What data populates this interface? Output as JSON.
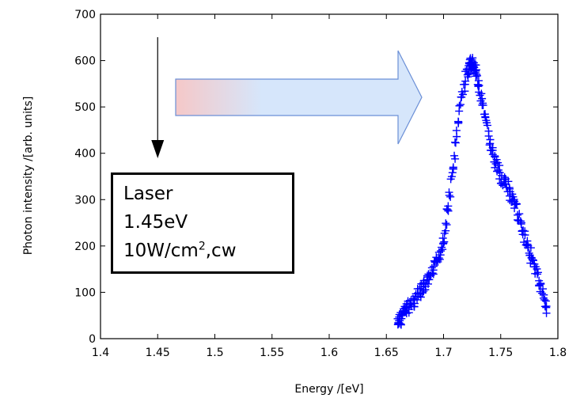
{
  "chart_data": {
    "type": "scatter",
    "xlabel": "Energy /[eV]",
    "ylabel": "Photon intensity /[arb. units]",
    "xlim": [
      1.4,
      1.8
    ],
    "ylim": [
      0,
      700
    ],
    "x_ticks": [
      "1.4",
      "1.45",
      "1.5",
      "1.55",
      "1.6",
      "1.65",
      "1.7",
      "1.75",
      "1.8"
    ],
    "y_ticks": [
      "0",
      "100",
      "200",
      "300",
      "400",
      "500",
      "600",
      "700"
    ],
    "series": [
      {
        "marker": "+",
        "color": "#0000ff",
        "points": [
          [
            1.66,
            30
          ],
          [
            1.662,
            42
          ],
          [
            1.665,
            55
          ],
          [
            1.67,
            70
          ],
          [
            1.675,
            85
          ],
          [
            1.68,
            100
          ],
          [
            1.685,
            118
          ],
          [
            1.69,
            140
          ],
          [
            1.695,
            170
          ],
          [
            1.7,
            215
          ],
          [
            1.705,
            300
          ],
          [
            1.71,
            400
          ],
          [
            1.715,
            510
          ],
          [
            1.72,
            570
          ],
          [
            1.723,
            590
          ],
          [
            1.725,
            595
          ],
          [
            1.728,
            580
          ],
          [
            1.73,
            555
          ],
          [
            1.735,
            490
          ],
          [
            1.74,
            430
          ],
          [
            1.745,
            380
          ],
          [
            1.75,
            350
          ],
          [
            1.755,
            330
          ],
          [
            1.76,
            300
          ],
          [
            1.765,
            270
          ],
          [
            1.77,
            230
          ],
          [
            1.775,
            190
          ],
          [
            1.78,
            150
          ],
          [
            1.785,
            110
          ],
          [
            1.79,
            70
          ]
        ]
      }
    ],
    "annotations": {
      "laser_lines": [
        "Laser",
        "1.45eV"
      ],
      "power_density": "10W/cm",
      "power_exponent": "2",
      "mode": ",cw",
      "laser_arrow_x": 1.45,
      "transfer_arrow_colors": [
        "#f5c8c8",
        "#d6e6fb"
      ],
      "transfer_arrow_stroke": "#6b8fd6"
    },
    "grid": false
  }
}
